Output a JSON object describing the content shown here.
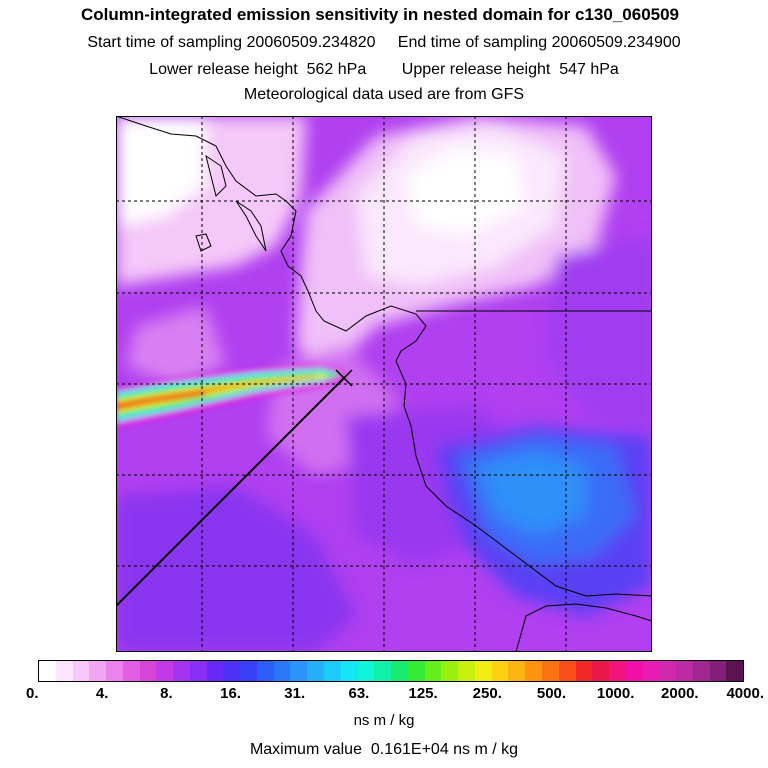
{
  "header": {
    "title": "Column-integrated emission sensitivity in nested domain for c130_060509",
    "sampling_line": "Start time of sampling 20060509.234820     End time of sampling 20060509.234900",
    "release_line": "Lower release height  562 hPa        Upper release height  547 hPa",
    "met_line": "Meteorological data used are from GFS"
  },
  "colorbar": {
    "ticks": [
      "0.",
      "4.",
      "8.",
      "16.",
      "31.",
      "63.",
      "125.",
      "250.",
      "500.",
      "1000.",
      "2000.",
      "4000."
    ],
    "colors": [
      "#ffffff",
      "#fde6fd",
      "#f8c8f8",
      "#f2a6f2",
      "#ec82ec",
      "#e25ee2",
      "#d645d6",
      "#c23ae8",
      "#a434f2",
      "#8a2ef6",
      "#6a28f8",
      "#4e30f8",
      "#3a40f8",
      "#2e5cf8",
      "#2a78f8",
      "#2a94f8",
      "#24b0f8",
      "#1cccf8",
      "#14e6f4",
      "#10f4d8",
      "#10f0a8",
      "#18ec70",
      "#34ec38",
      "#66ee1c",
      "#98f010",
      "#c8f010",
      "#f0ee10",
      "#fcd210",
      "#fcb410",
      "#fc9410",
      "#fc7210",
      "#f84e18",
      "#f02828",
      "#e81848",
      "#f0147c",
      "#f010a8",
      "#e81cb4",
      "#d228b0",
      "#ba2ca4",
      "#9e2890",
      "#822078",
      "#5c1450"
    ],
    "units": "ns m / kg",
    "max_label": "Maximum value  0.161E+04 ns m / kg"
  },
  "map": {
    "background_color": "#b040f0",
    "release_marker": "x-mark-icon",
    "plume_colors": [
      "#e020e0",
      "#38e8f0",
      "#30f040",
      "#f8e818",
      "#f07018",
      "#e82828"
    ]
  }
}
